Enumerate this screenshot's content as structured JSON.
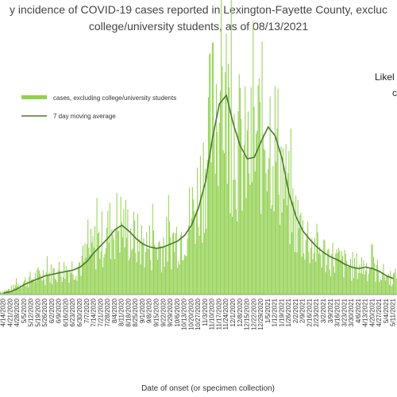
{
  "header": {
    "title_line1": "y incidence of COVID-19 cases reported in Lexington-Fayette County, excluc",
    "title_line2": "college/university students, as of 08/13/2021",
    "note_line1": "Likel",
    "note_line2": "c"
  },
  "chart_data": {
    "type": "bar",
    "xlabel": "Date of onset (or specimen collection)",
    "ylabel": "",
    "grid": false,
    "legend_placement": "top-left",
    "legend": [
      {
        "label": "cases, excluding college/university students",
        "kind": "bar",
        "color": "#92d050"
      },
      {
        "label": "7 day moving average",
        "kind": "line",
        "color": "#4a7a2a"
      }
    ],
    "x_tick_labels": [
      "4/14/2020",
      "4/21/2020",
      "4/28/2020",
      "5/5/2020",
      "5/12/2020",
      "5/19/2020",
      "5/26/2020",
      "6/2/2020",
      "6/9/2020",
      "6/16/2020",
      "6/23/2020",
      "6/30/2020",
      "7/7/2020",
      "7/14/2020",
      "7/21/2020",
      "7/28/2020",
      "8/4/2020",
      "8/11/2020",
      "8/18/2020",
      "8/25/2020",
      "9/1/2020",
      "9/8/2020",
      "9/15/2020",
      "9/22/2020",
      "9/29/2020",
      "10/6/2020",
      "10/13/2020",
      "10/20/2020",
      "10/27/2020",
      "11/3/2020",
      "11/10/2020",
      "11/17/2020",
      "11/24/2020",
      "12/1/2020",
      "12/8/2020",
      "12/15/2020",
      "12/22/2020",
      "12/29/2020",
      "1/5/2021",
      "1/12/2021",
      "1/19/2021",
      "1/26/2021",
      "2/2/2021",
      "2/9/2021",
      "2/16/2021",
      "2/23/2021",
      "3/2/2021",
      "3/9/2021",
      "3/16/2021",
      "3/23/2021",
      "3/30/2021",
      "4/6/2021",
      "4/13/2021",
      "4/20/2021",
      "4/27/2021",
      "5/4/2021",
      "5/11/2021"
    ],
    "weekly_values": [
      2,
      3,
      5,
      8,
      10,
      12,
      14,
      14,
      16,
      17,
      18,
      20,
      24,
      30,
      36,
      40,
      46,
      50,
      46,
      40,
      36,
      34,
      33,
      34,
      36,
      38,
      42,
      50,
      62,
      80,
      110,
      135,
      140,
      120,
      105,
      95,
      96,
      108,
      118,
      112,
      96,
      72,
      56,
      46,
      40,
      34,
      30,
      27,
      25,
      22,
      20,
      19,
      20,
      19,
      17,
      14,
      12
    ],
    "moving_average_weekly": [
      1,
      2,
      4,
      7,
      9,
      11,
      13,
      14,
      15,
      16,
      17,
      19,
      23,
      29,
      34,
      39,
      45,
      48,
      44,
      39,
      35,
      33,
      32,
      33,
      35,
      37,
      41,
      48,
      60,
      78,
      108,
      132,
      138,
      118,
      103,
      94,
      95,
      106,
      116,
      110,
      94,
      70,
      54,
      44,
      38,
      33,
      29,
      26,
      24,
      21,
      19,
      18,
      19,
      18,
      16,
      13,
      11
    ],
    "daily_peak_label": "",
    "x_range": [
      "4/12/2020",
      "5/13/2021"
    ]
  }
}
